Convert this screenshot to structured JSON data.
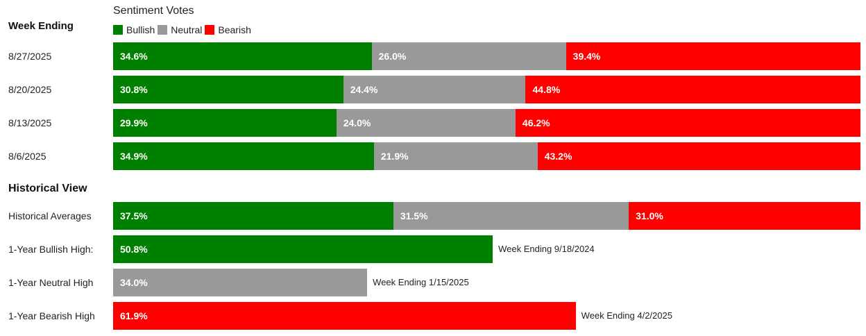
{
  "header": {
    "sentiment_title": "Sentiment Votes",
    "week_ending_label": "Week Ending",
    "historical_label": "Historical View"
  },
  "legend": [
    {
      "name": "Bullish",
      "color": "#008000"
    },
    {
      "name": "Neutral",
      "color": "#999999"
    },
    {
      "name": "Bearish",
      "color": "#ff0000"
    }
  ],
  "chart_data": {
    "type": "bar",
    "orientation": "horizontal",
    "stacked": true,
    "title": "Sentiment Votes",
    "xlim": [
      0,
      100
    ],
    "legend_position": "top-left",
    "weekly": {
      "categories": [
        "8/27/2025",
        "8/20/2025",
        "8/13/2025",
        "8/6/2025"
      ],
      "series": [
        {
          "name": "Bullish",
          "color": "#008000",
          "values": [
            34.6,
            30.8,
            29.9,
            34.9
          ],
          "labels": [
            "34.6%",
            "30.8%",
            "29.9%",
            "34.9%"
          ]
        },
        {
          "name": "Neutral",
          "color": "#999999",
          "values": [
            26.0,
            24.4,
            24.0,
            21.9
          ],
          "labels": [
            "26.0%",
            "24.4%",
            "24.0%",
            "21.9%"
          ]
        },
        {
          "name": "Bearish",
          "color": "#ff0000",
          "values": [
            39.4,
            44.8,
            46.2,
            43.2
          ],
          "labels": [
            "39.4%",
            "44.8%",
            "46.2%",
            "43.2%"
          ]
        }
      ]
    },
    "historical_averages": {
      "category": "Historical Averages",
      "series": [
        {
          "name": "Bullish",
          "color": "#008000",
          "value": 37.5,
          "label": "37.5%"
        },
        {
          "name": "Neutral",
          "color": "#999999",
          "value": 31.5,
          "label": "31.5%"
        },
        {
          "name": "Bearish",
          "color": "#ff0000",
          "value": 31.0,
          "label": "31.0%"
        }
      ]
    },
    "one_year_highs": [
      {
        "category": "1-Year Bullish High:",
        "series": "Bullish",
        "color": "#008000",
        "value": 50.8,
        "label": "50.8%",
        "note": "Week Ending 9/18/2024"
      },
      {
        "category": "1-Year Neutral High",
        "series": "Neutral",
        "color": "#999999",
        "value": 34.0,
        "label": "34.0%",
        "note": "Week Ending 1/15/2025"
      },
      {
        "category": "1-Year Bearish High",
        "series": "Bearish",
        "color": "#ff0000",
        "value": 61.9,
        "label": "61.9%",
        "note": "Week Ending 4/2/2025"
      }
    ]
  }
}
